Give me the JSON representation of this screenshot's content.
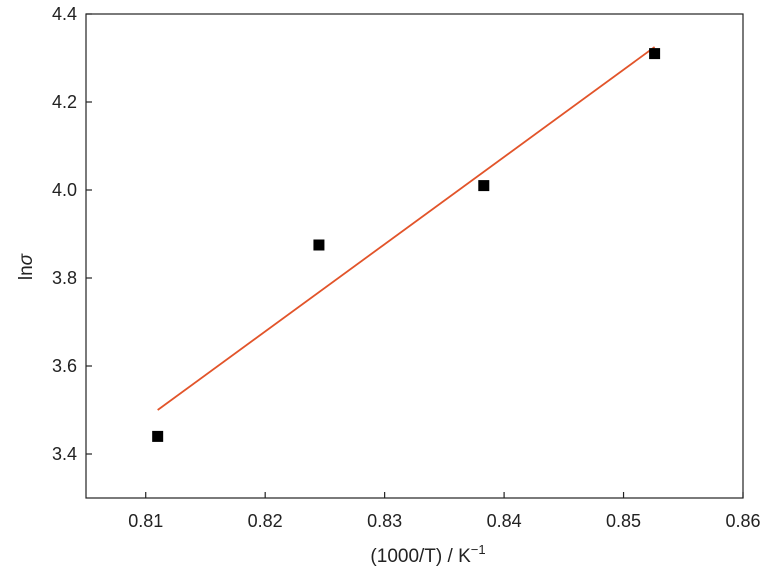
{
  "chart_data": {
    "type": "scatter",
    "xlabel_main": "(1000/T) / K",
    "xlabel_sup": "−1",
    "ylabel_prefix": "ln",
    "ylabel_symbol": "σ",
    "xlim": [
      0.805,
      0.86
    ],
    "ylim": [
      3.3,
      4.4
    ],
    "xticks": [
      "0.81",
      "0.82",
      "0.83",
      "0.84",
      "0.85",
      "0.86"
    ],
    "yticks": [
      "3.4",
      "3.6",
      "3.8",
      "4.0",
      "4.2",
      "4.4"
    ],
    "grid": false,
    "legend": "none",
    "series": [
      {
        "marker": "square",
        "color": "#000000",
        "points": [
          {
            "x": 0.811,
            "y": 3.44
          },
          {
            "x": 0.8245,
            "y": 3.875
          },
          {
            "x": 0.8383,
            "y": 4.01
          },
          {
            "x": 0.8526,
            "y": 4.31
          }
        ]
      }
    ],
    "fit_line": {
      "color": "#e2542a",
      "points": [
        {
          "x": 0.811,
          "y": 3.5
        },
        {
          "x": 0.8526,
          "y": 4.325
        }
      ]
    }
  }
}
